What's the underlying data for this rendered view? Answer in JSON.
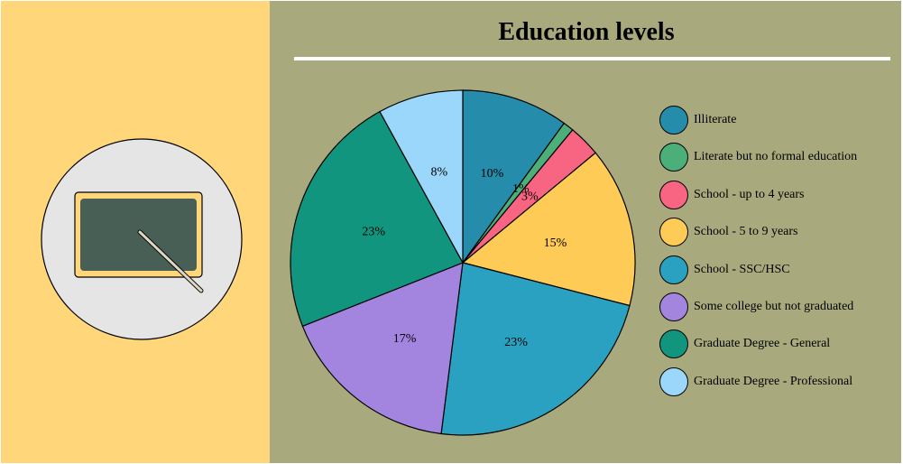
{
  "chart_data": {
    "type": "pie",
    "title": "Education levels",
    "categories": [
      "Illiterate",
      "Literate but no formal education",
      "School - up to 4 years",
      "School - 5 to 9 years",
      "School - SSC/HSC",
      "Some college but not graduated",
      "Graduate Degree - General",
      "Graduate Degree - Professional"
    ],
    "values": [
      10,
      1,
      3,
      15,
      23,
      17,
      23,
      8
    ],
    "labels": [
      "10%",
      "1%",
      "3%",
      "15%",
      "23%",
      "17%",
      "23%",
      "8%"
    ],
    "colors": [
      "#258dab",
      "#4caf7a",
      "#f76582",
      "#ffcb57",
      "#2aa1c0",
      "#a385e0",
      "#12957e",
      "#9bd7fb"
    ],
    "legend": "right"
  },
  "icon": "blackboard-icon"
}
